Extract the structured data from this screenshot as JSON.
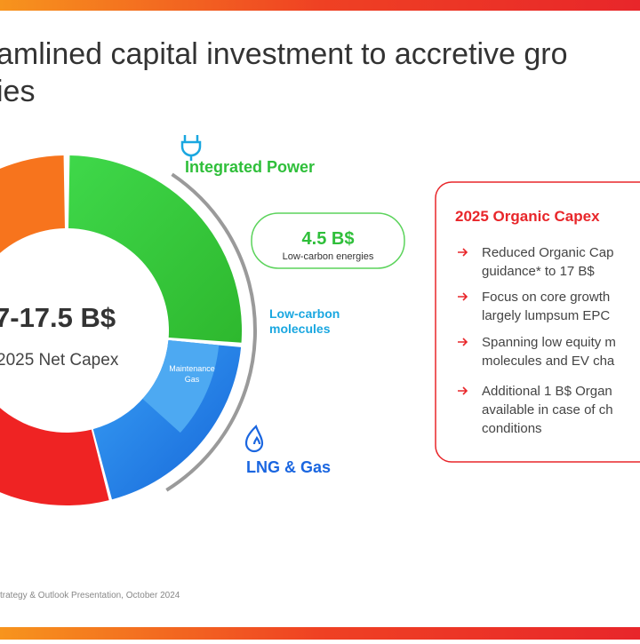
{
  "header": {
    "title_lines": [
      "amlined capital investment to accretive gro",
      "ies"
    ]
  },
  "donut": {
    "center_value": "7-17.5 B$",
    "center_label": "2025 Net Capex",
    "segments": {
      "integrated_power": "Integrated Power",
      "low_carbon_molecules": [
        "Low-carbon",
        "molecules"
      ],
      "maintenance_gas": [
        "Maintenance",
        "Gas"
      ],
      "lng_gas": "LNG & Gas"
    },
    "callout": {
      "value": "4.5 B$",
      "label": "Low-carbon energies"
    }
  },
  "capex_box": {
    "title": "2025 Organic Capex",
    "bullets": [
      {
        "lines": [
          "Reduced Organic Cap",
          "guidance* to 17 B$"
        ]
      },
      {
        "lines": [
          "Focus on core growth",
          "largely lumpsum EPC"
        ]
      },
      {
        "lines": [
          "Spanning low equity m",
          "molecules and EV cha"
        ]
      },
      {
        "lines": [
          "Additional 1 B$ Organ",
          "available in case of ch",
          "conditions"
        ]
      }
    ]
  },
  "footer": "trategy & Outlook Presentation, October 2024"
}
